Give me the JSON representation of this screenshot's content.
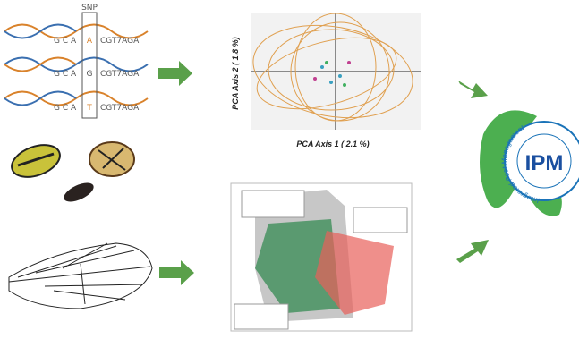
{
  "dna": {
    "snp_label": "SNP",
    "rows": [
      {
        "left": "G C A",
        "snp": "A",
        "right": "CGT7AGA"
      },
      {
        "left": "G C A",
        "snp": "G",
        "right": "CGT7AGA"
      },
      {
        "left": "G C A",
        "snp": "T",
        "right": "CGT7AGA"
      }
    ]
  },
  "pca": {
    "y_axis_label": "PCA Axis 2 ( 1.8 %)",
    "x_axis_label": "PCA Axis 1 ( 2.1 %)"
  },
  "logo": {
    "acronym": "IPM",
    "name": "Integrated Pest Management"
  }
}
